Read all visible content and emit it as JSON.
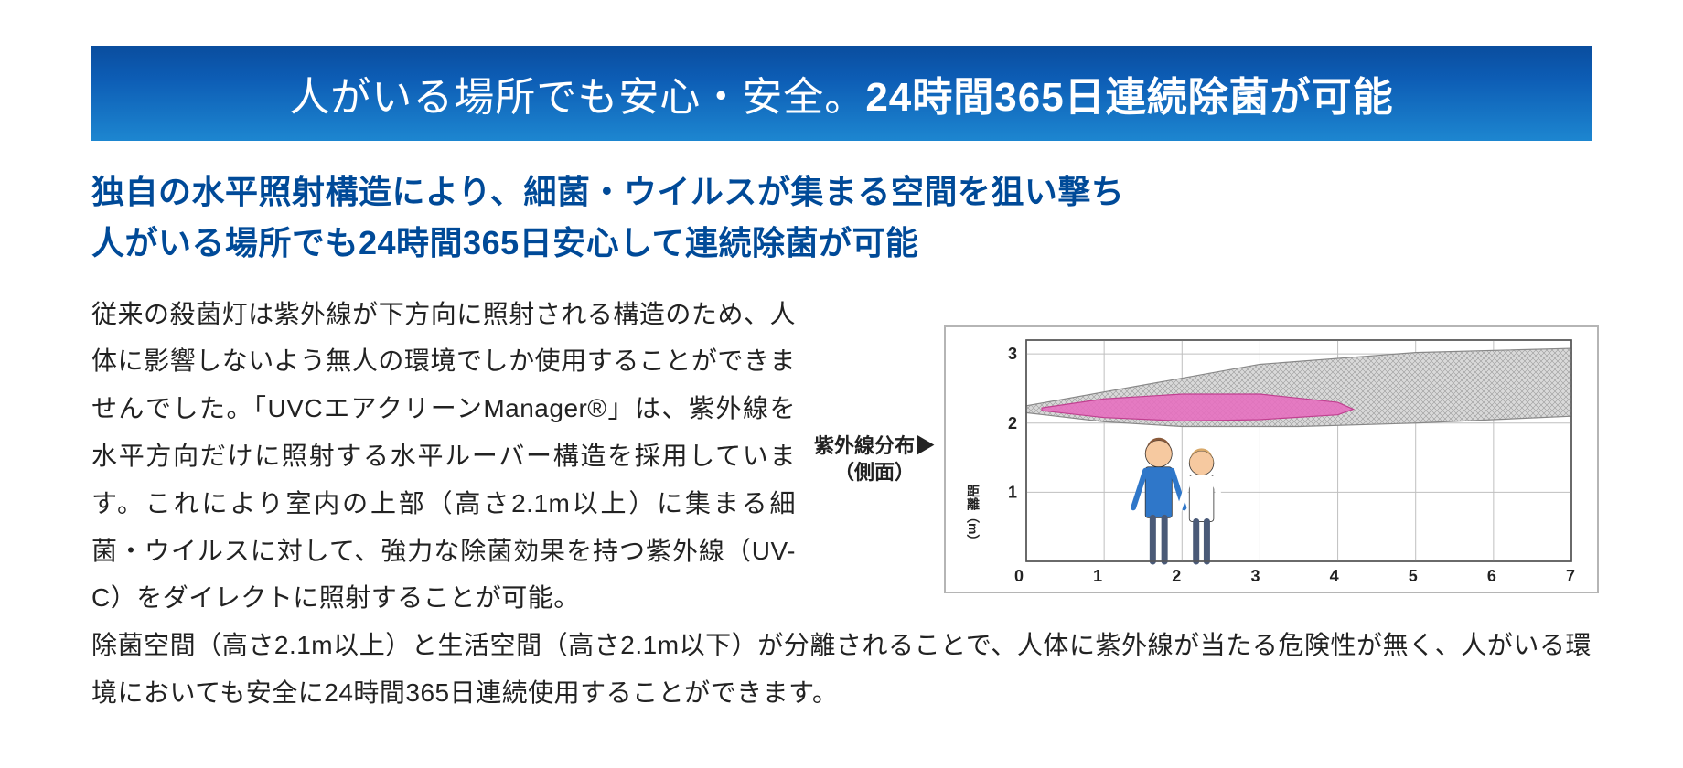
{
  "banner": {
    "part1": "人がいる場所でも安心・安全。",
    "part2": "24時間365日連続除菌が可能",
    "bg_gradient_top": "#0a4d9e",
    "bg_gradient_bottom": "#1d86d0",
    "font_color": "#ffffff",
    "font_size_pt": 33
  },
  "subtitle": {
    "line1": "独自の水平照射構造により、細菌・ウイルスが集まる空間を狙い撃ち",
    "line2": "人がいる場所でも24時間365日安心して連続除菌が可能",
    "color": "#004a98",
    "font_size_pt": 27,
    "font_weight": 700
  },
  "body": {
    "para1": "従来の殺菌灯は紫外線が下方向に照射される構造のため、人体に影響しないよう無人の環境でしか使用することができませんでした。「UVCエアクリーンManager®」は、紫外線を水平方向だけに照射する水平ルーバー構造を採用しています。これにより室内の上部（高さ2.1m以上）に集まる細菌・ウイルスに対して、強力な除菌効果を持つ紫外線（UV-C）をダイレクトに照射することが可能。",
    "para2": "除菌空間（高さ2.1m以上）と生活空間（高さ2.1m以下）が分離されることで、人体に紫外線が当たる危険性が無く、人がいる環境においても安全に24時間365日連続使用することができます。",
    "color": "#222222",
    "font_size_pt": 21,
    "line_height": 1.85
  },
  "chart": {
    "side_label_line1": "紫外線分布▶",
    "side_label_line2": "（側面）",
    "axis_vert_label": "距離（m）",
    "type": "area-distribution",
    "x_ticks": [
      "0",
      "1",
      "2",
      "3",
      "4",
      "5",
      "6",
      "7"
    ],
    "y_ticks": [
      "1",
      "2",
      "3"
    ],
    "xlim": [
      0,
      7
    ],
    "ylim": [
      0,
      3.2
    ],
    "grid_color": "#bfbfbf",
    "border_color": "#b5b5b5",
    "background_color": "#ffffff",
    "outer_band": {
      "fill": "#d9d9d9",
      "hatch": "crosshatch",
      "stroke": "#888888",
      "y_center": 2.2,
      "top_path": [
        [
          0,
          2.25
        ],
        [
          1,
          2.45
        ],
        [
          3,
          2.85
        ],
        [
          5,
          3.02
        ],
        [
          7,
          3.08
        ]
      ],
      "bottom_path": [
        [
          0,
          2.15
        ],
        [
          1,
          2.02
        ],
        [
          2,
          1.95
        ],
        [
          3.5,
          1.95
        ],
        [
          5,
          2.0
        ],
        [
          7,
          2.1
        ]
      ]
    },
    "inner_band": {
      "fill": "#e56fbf",
      "stroke": "#c04090",
      "top_path": [
        [
          0.2,
          2.22
        ],
        [
          1,
          2.35
        ],
        [
          2,
          2.42
        ],
        [
          3,
          2.42
        ],
        [
          4,
          2.3
        ],
        [
          4.2,
          2.2
        ]
      ],
      "bottom_path": [
        [
          0.2,
          2.18
        ],
        [
          1,
          2.08
        ],
        [
          2,
          2.03
        ],
        [
          3,
          2.05
        ],
        [
          4,
          2.12
        ],
        [
          4.2,
          2.2
        ]
      ]
    },
    "people": [
      {
        "x": 1.7,
        "height": 1.75,
        "shirt_color": "#2f77c9",
        "hair_color": "#8a5a3a",
        "skin_color": "#f6c9a0",
        "label": "man"
      },
      {
        "x": 2.25,
        "height": 1.6,
        "shirt_color": "#ffffff",
        "hair_color": "#d9a96a",
        "skin_color": "#f6c9a0",
        "label": "woman"
      }
    ],
    "tick_font_size_pt": 14,
    "tick_font_weight": 700
  }
}
